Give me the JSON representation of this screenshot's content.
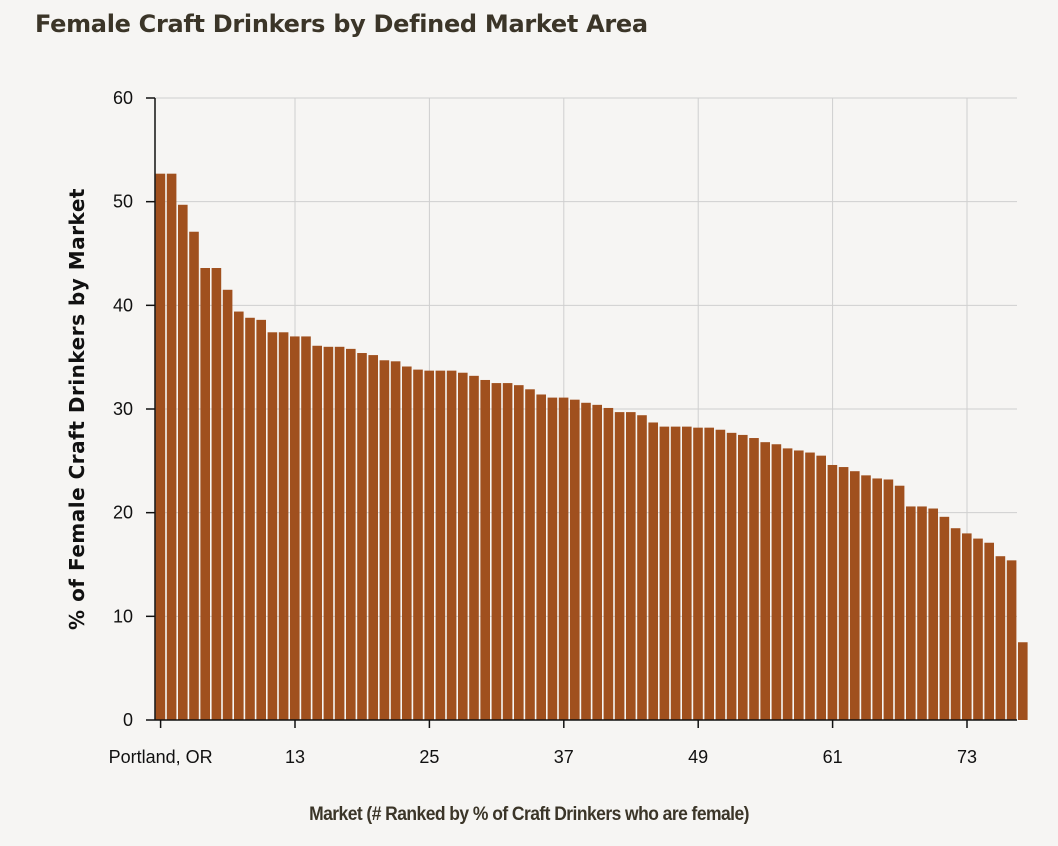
{
  "chart_data": {
    "type": "bar",
    "title": "Female Craft Drinkers by Defined Market Area",
    "xlabel": "Market (# Ranked by % of Craft Drinkers who are female)",
    "ylabel": "% of Female Craft Drinkers by Market",
    "ylim": [
      0,
      60
    ],
    "yticks": [
      0,
      10,
      20,
      30,
      40,
      50,
      60
    ],
    "xtick_labels": [
      {
        "rank": 1,
        "label": "Portland, OR"
      },
      {
        "rank": 13,
        "label": "13"
      },
      {
        "rank": 25,
        "label": "25"
      },
      {
        "rank": 37,
        "label": "37"
      },
      {
        "rank": 49,
        "label": "49"
      },
      {
        "rank": 61,
        "label": "61"
      },
      {
        "rank": 73,
        "label": "73"
      }
    ],
    "grid": true,
    "bar_color": "#a0501e",
    "values": [
      52.7,
      52.7,
      49.7,
      47.1,
      43.6,
      43.6,
      41.5,
      39.4,
      38.8,
      38.6,
      37.4,
      37.4,
      37.0,
      37.0,
      36.1,
      36.0,
      36.0,
      35.8,
      35.4,
      35.2,
      34.7,
      34.6,
      34.1,
      33.8,
      33.7,
      33.7,
      33.7,
      33.5,
      33.2,
      32.8,
      32.5,
      32.5,
      32.3,
      31.9,
      31.4,
      31.1,
      31.1,
      30.9,
      30.6,
      30.4,
      30.1,
      29.7,
      29.7,
      29.4,
      28.7,
      28.3,
      28.3,
      28.3,
      28.2,
      28.2,
      28.0,
      27.7,
      27.5,
      27.2,
      26.8,
      26.6,
      26.2,
      26.0,
      25.8,
      25.5,
      24.6,
      24.4,
      24.0,
      23.6,
      23.3,
      23.2,
      22.6,
      20.6,
      20.6,
      20.4,
      19.6,
      18.5,
      18.0,
      17.5,
      17.1,
      15.8,
      15.4,
      7.5
    ]
  }
}
